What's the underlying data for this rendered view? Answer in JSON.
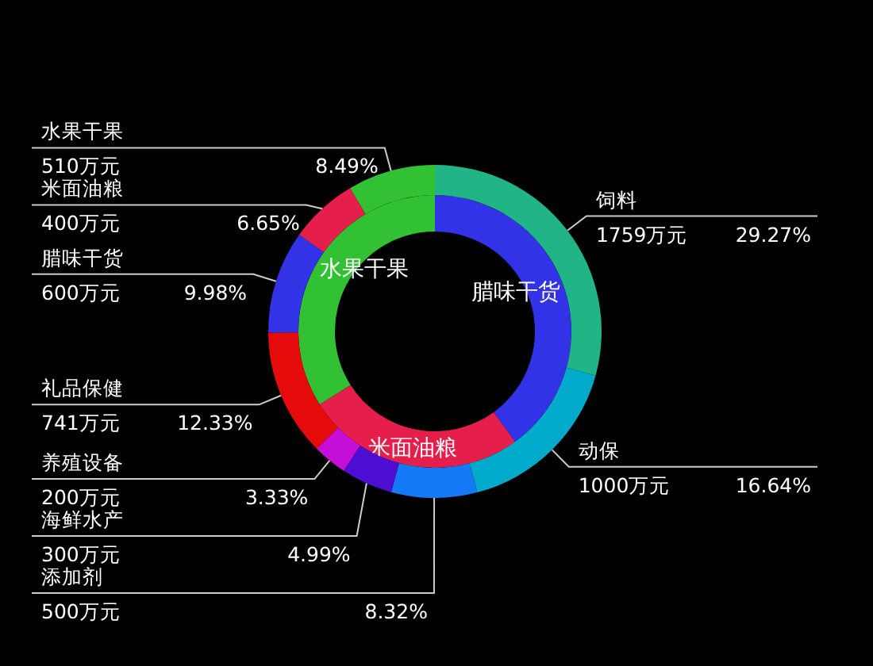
{
  "chart_data": [
    {
      "type": "donut",
      "categories": [
        "腊味干货",
        "米面油粮",
        "水果干果"
      ],
      "values": [
        40,
        26,
        34
      ],
      "colors": [
        "#3232e6",
        "#e61e4b",
        "#32c132"
      ]
    },
    {
      "type": "donut",
      "categories": [
        "饲料",
        "动保",
        "添加剂",
        "海鲜水产",
        "养殖设备",
        "礼品保健",
        "腊味干货",
        "米面油粮",
        "水果干果"
      ],
      "values": [
        29.27,
        16.64,
        8.32,
        4.99,
        3.33,
        12.33,
        9.98,
        6.65,
        8.49
      ],
      "value_labels": [
        "1759万元 29.27%",
        "1000万元 16.64%",
        "500万元 8.32%",
        "300万元 4.99%",
        "200万元 3.33%",
        "741万元 12.33%",
        "600万元 9.98%",
        "400万元 6.65%",
        "510万元 8.49%"
      ],
      "colors": [
        "#20b487",
        "#00aacb",
        "#1479f5",
        "#4b0ed2",
        "#c50fd8",
        "#e60b0b",
        "#3232e6",
        "#e61e4b",
        "#32c132"
      ]
    }
  ]
}
